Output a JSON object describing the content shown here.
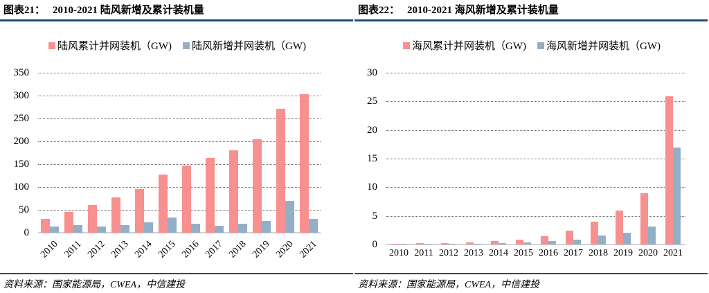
{
  "colors": {
    "cumulative_bar": "#f8908f",
    "new_bar": "#92afc7",
    "divider": "#1f4e79"
  },
  "panels": [
    {
      "title_label": "图表21：",
      "title_text": "2010-2021 陆风新增及累计装机量",
      "legend": [
        {
          "label": "陆风累计并网装机（GW)",
          "color": "#f8908f"
        },
        {
          "label": "陆风新增并网装机（GW)",
          "color": "#92afc7"
        }
      ],
      "source": "资料来源：国家能源局，CWEA，中信建投"
    },
    {
      "title_label": "图表22：",
      "title_text": "2010-2021 海风新增及累计装机量",
      "legend": [
        {
          "label": "海风累计并网装机（GW)",
          "color": "#f8908f"
        },
        {
          "label": "海风新增并网装机（GW)",
          "color": "#92afc7"
        }
      ],
      "source": "资料来源：国家能源局，CWEA，中信建投"
    }
  ],
  "chart_data": [
    {
      "type": "bar",
      "title": "2010-2021 陆风新增及累计装机量",
      "categories": [
        "2010",
        "2011",
        "2012",
        "2013",
        "2014",
        "2015",
        "2016",
        "2017",
        "2018",
        "2019",
        "2020",
        "2021"
      ],
      "series": [
        {
          "name": "陆风累计并网装机（GW)",
          "color": "#f8908f",
          "values": [
            31,
            46,
            61,
            77,
            96,
            128,
            147,
            163,
            181,
            205,
            271,
            303
          ]
        },
        {
          "name": "陆风新增并网装机（GW)",
          "color": "#92afc7",
          "values": [
            14,
            17,
            14,
            16,
            22,
            34,
            19,
            15,
            20,
            25,
            69,
            31
          ]
        }
      ],
      "ylim": [
        0,
        350
      ],
      "ytick_step": 50,
      "grid": true,
      "legend_position": "top",
      "x_label_rotation": -45
    },
    {
      "type": "bar",
      "title": "2010-2021 海风新增及累计装机量",
      "categories": [
        "2010",
        "2011",
        "2012",
        "2013",
        "2014",
        "2015",
        "2016",
        "2017",
        "2018",
        "2019",
        "2020",
        "2021"
      ],
      "series": [
        {
          "name": "海风累计并网装机（GW)",
          "color": "#f8908f",
          "values": [
            0.1,
            0.2,
            0.3,
            0.4,
            0.55,
            0.9,
            1.5,
            2.4,
            4.0,
            5.9,
            9.0,
            25.9
          ]
        },
        {
          "name": "海风新增并网装机（GW)",
          "color": "#92afc7",
          "values": [
            0.05,
            0.08,
            0.1,
            0.12,
            0.2,
            0.35,
            0.55,
            0.9,
            1.6,
            2.0,
            3.1,
            16.9
          ]
        }
      ],
      "ylim": [
        0,
        30
      ],
      "ytick_step": 5,
      "grid": true,
      "legend_position": "top",
      "x_label_rotation": 0
    }
  ]
}
